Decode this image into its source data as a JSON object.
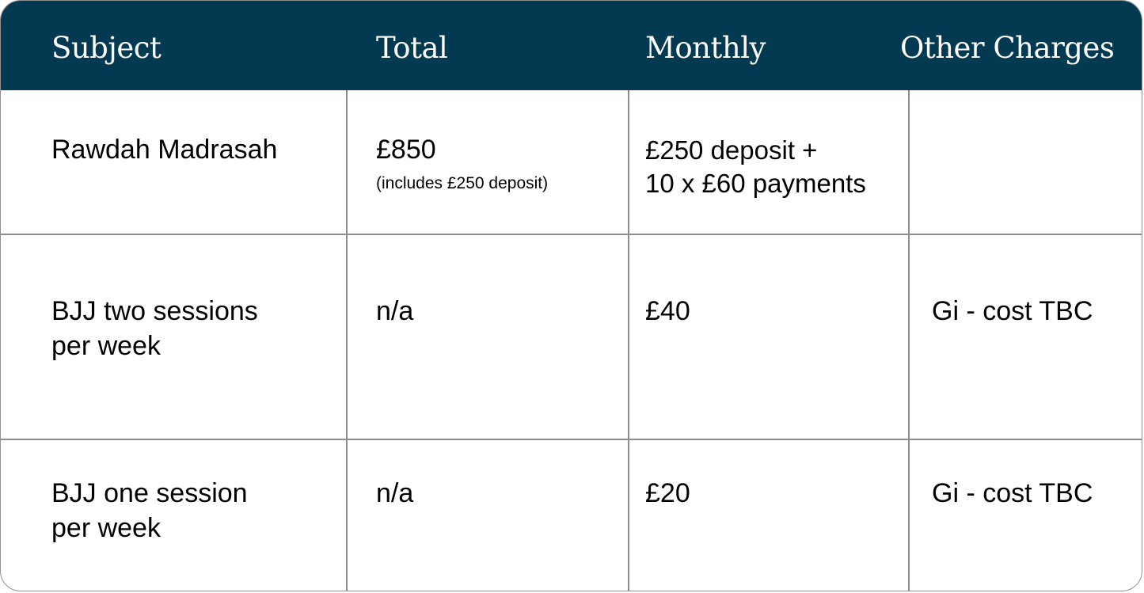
{
  "header": {
    "subject": "Subject",
    "total": "Total",
    "monthly": "Monthly",
    "other_charges": "Other Charges"
  },
  "rows": [
    {
      "subject": [
        "Rawdah Madrasah"
      ],
      "total": "£850",
      "total_note": "(includes £250 deposit)",
      "monthly": [
        "£250 deposit +",
        "10 x £60 payments"
      ],
      "other_charges": ""
    },
    {
      "subject": [
        "BJJ two sessions",
        "per week"
      ],
      "total": "n/a",
      "monthly": [
        "£40"
      ],
      "other_charges": "Gi - cost TBC"
    },
    {
      "subject": [
        "BJJ one session",
        "per week"
      ],
      "total": "n/a",
      "monthly": [
        "£20"
      ],
      "other_charges": "Gi - cost TBC"
    }
  ]
}
